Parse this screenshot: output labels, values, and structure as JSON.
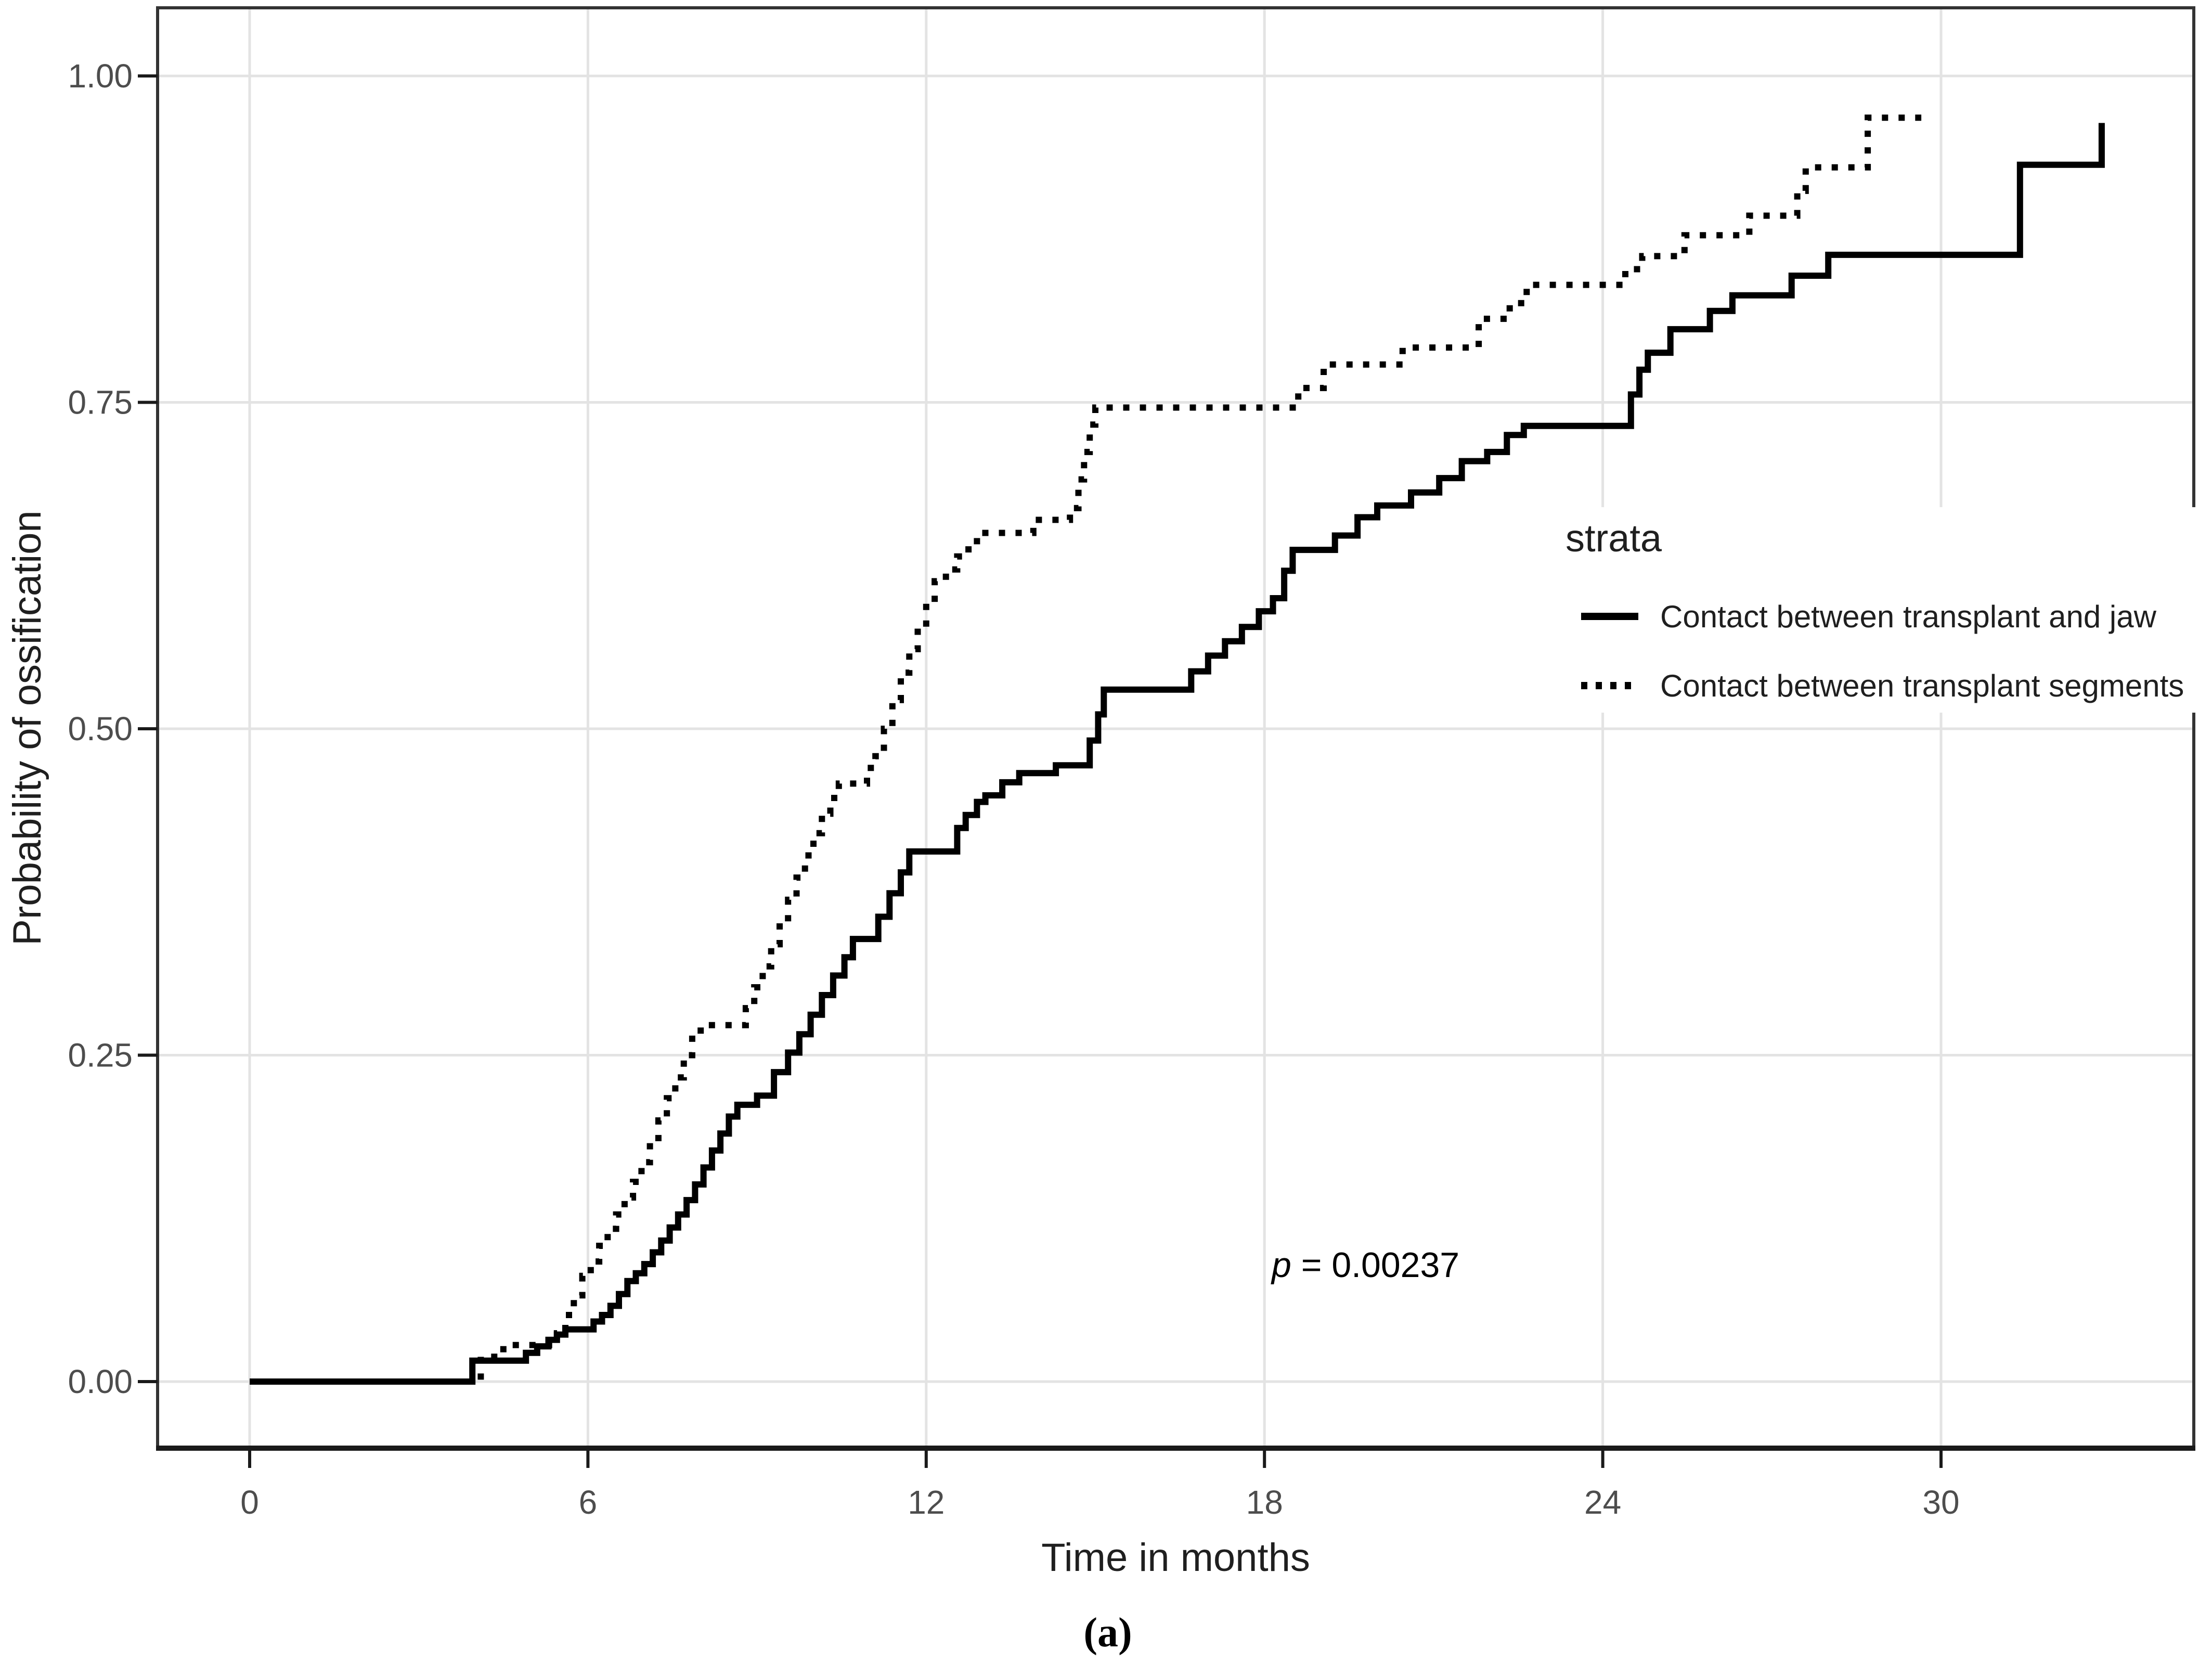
{
  "figure": {
    "background": "#ffffff",
    "caption": "(a)"
  },
  "chart_data": {
    "type": "line",
    "subtype": "kaplan-meier-cumulative-incidence-step",
    "title": "",
    "xlabel": "Time in months",
    "ylabel": "Probability of ossification",
    "xlim": [
      -1.6,
      34.5
    ],
    "ylim": [
      0,
      1.05
    ],
    "grid": "major-only",
    "x_ticks": [
      {
        "value": 0,
        "label": "0"
      },
      {
        "value": 6,
        "label": "6"
      },
      {
        "value": 12,
        "label": "12"
      },
      {
        "value": 18,
        "label": "18"
      },
      {
        "value": 24,
        "label": "24"
      },
      {
        "value": 30,
        "label": "30"
      }
    ],
    "y_ticks": [
      {
        "value": 0,
        "label": "0.00"
      },
      {
        "value": 0.25,
        "label": "0.25"
      },
      {
        "value": 0.5,
        "label": "0.50"
      },
      {
        "value": 0.75,
        "label": "0.75"
      },
      {
        "value": 1.0,
        "label": "1.00"
      }
    ],
    "annotation": {
      "italic_part": "p",
      "text_part": " = 0.00237"
    },
    "legend": {
      "title": "strata",
      "position": "inside-right"
    },
    "colors": {
      "curve": "#000000",
      "grid": "#e3e3e3",
      "panel_border": "#333333",
      "axis_line": "#1a1a1a",
      "tick_text": "#4d4d4d",
      "label_text": "#1f1f1f"
    },
    "series": [
      {
        "name": "Contact between transplant and jaw",
        "line": "solid",
        "steps": [
          [
            0,
            0
          ],
          [
            3.95,
            0.016
          ],
          [
            4.9,
            0.022
          ],
          [
            5.1,
            0.027
          ],
          [
            5.3,
            0.032
          ],
          [
            5.45,
            0.036
          ],
          [
            5.6,
            0.04
          ],
          [
            6.1,
            0.046
          ],
          [
            6.25,
            0.051
          ],
          [
            6.4,
            0.058
          ],
          [
            6.55,
            0.067
          ],
          [
            6.7,
            0.077
          ],
          [
            6.85,
            0.083
          ],
          [
            7.0,
            0.09
          ],
          [
            7.15,
            0.099
          ],
          [
            7.3,
            0.108
          ],
          [
            7.45,
            0.118
          ],
          [
            7.6,
            0.128
          ],
          [
            7.75,
            0.139
          ],
          [
            7.9,
            0.151
          ],
          [
            8.05,
            0.164
          ],
          [
            8.2,
            0.177
          ],
          [
            8.35,
            0.19
          ],
          [
            8.5,
            0.203
          ],
          [
            8.65,
            0.212
          ],
          [
            9.0,
            0.219
          ],
          [
            9.3,
            0.237
          ],
          [
            9.55,
            0.252
          ],
          [
            9.75,
            0.266
          ],
          [
            9.95,
            0.281
          ],
          [
            10.15,
            0.296
          ],
          [
            10.35,
            0.311
          ],
          [
            10.55,
            0.325
          ],
          [
            10.7,
            0.339
          ],
          [
            11.15,
            0.356
          ],
          [
            11.35,
            0.374
          ],
          [
            11.55,
            0.39
          ],
          [
            11.7,
            0.406
          ],
          [
            12.55,
            0.424
          ],
          [
            12.7,
            0.434
          ],
          [
            12.9,
            0.444
          ],
          [
            13.05,
            0.449
          ],
          [
            13.35,
            0.459
          ],
          [
            13.65,
            0.466
          ],
          [
            14.3,
            0.472
          ],
          [
            14.9,
            0.491
          ],
          [
            15.05,
            0.511
          ],
          [
            15.15,
            0.53
          ],
          [
            16.7,
            0.544
          ],
          [
            17.0,
            0.556
          ],
          [
            17.3,
            0.567
          ],
          [
            17.6,
            0.578
          ],
          [
            17.9,
            0.59
          ],
          [
            18.15,
            0.6
          ],
          [
            18.35,
            0.621
          ],
          [
            18.5,
            0.637
          ],
          [
            19.25,
            0.648
          ],
          [
            19.65,
            0.662
          ],
          [
            20.0,
            0.671
          ],
          [
            20.6,
            0.681
          ],
          [
            21.1,
            0.692
          ],
          [
            21.5,
            0.705
          ],
          [
            21.95,
            0.712
          ],
          [
            22.3,
            0.725
          ],
          [
            22.6,
            0.732
          ],
          [
            24.5,
            0.756
          ],
          [
            24.65,
            0.775
          ],
          [
            24.8,
            0.788
          ],
          [
            25.2,
            0.806
          ],
          [
            25.9,
            0.82
          ],
          [
            26.3,
            0.832
          ],
          [
            27.35,
            0.847
          ],
          [
            28.0,
            0.863
          ],
          [
            31.4,
            0.932
          ],
          [
            32.85,
            0.964
          ]
        ]
      },
      {
        "name": "Contact between transplant segments",
        "line": "dotted",
        "end_t": 29.65,
        "steps": [
          [
            0,
            0
          ],
          [
            4.1,
            0.019
          ],
          [
            4.5,
            0.028
          ],
          [
            5.45,
            0.037
          ],
          [
            5.6,
            0.051
          ],
          [
            5.75,
            0.066
          ],
          [
            5.9,
            0.081
          ],
          [
            6.05,
            0.092
          ],
          [
            6.2,
            0.104
          ],
          [
            6.35,
            0.117
          ],
          [
            6.5,
            0.128
          ],
          [
            6.65,
            0.141
          ],
          [
            6.8,
            0.153
          ],
          [
            6.95,
            0.168
          ],
          [
            7.1,
            0.183
          ],
          [
            7.25,
            0.2
          ],
          [
            7.4,
            0.217
          ],
          [
            7.55,
            0.233
          ],
          [
            7.7,
            0.25
          ],
          [
            7.85,
            0.265
          ],
          [
            8.0,
            0.273
          ],
          [
            8.8,
            0.286
          ],
          [
            8.95,
            0.302
          ],
          [
            9.1,
            0.318
          ],
          [
            9.25,
            0.335
          ],
          [
            9.4,
            0.352
          ],
          [
            9.55,
            0.369
          ],
          [
            9.7,
            0.386
          ],
          [
            9.85,
            0.403
          ],
          [
            10.0,
            0.42
          ],
          [
            10.15,
            0.435
          ],
          [
            10.3,
            0.447
          ],
          [
            10.45,
            0.458
          ],
          [
            10.95,
            0.47
          ],
          [
            11.1,
            0.479
          ],
          [
            11.25,
            0.5
          ],
          [
            11.4,
            0.522
          ],
          [
            11.55,
            0.543
          ],
          [
            11.7,
            0.561
          ],
          [
            11.85,
            0.578
          ],
          [
            12.0,
            0.596
          ],
          [
            12.15,
            0.613
          ],
          [
            12.35,
            0.622
          ],
          [
            12.55,
            0.632
          ],
          [
            12.75,
            0.641
          ],
          [
            12.9,
            0.65
          ],
          [
            13.9,
            0.66
          ],
          [
            14.55,
            0.669
          ],
          [
            14.7,
            0.691
          ],
          [
            14.8,
            0.712
          ],
          [
            14.9,
            0.733
          ],
          [
            15.0,
            0.746
          ],
          [
            18.6,
            0.761
          ],
          [
            19.05,
            0.779
          ],
          [
            20.45,
            0.792
          ],
          [
            21.8,
            0.814
          ],
          [
            22.35,
            0.826
          ],
          [
            22.65,
            0.84
          ],
          [
            24.4,
            0.852
          ],
          [
            24.7,
            0.862
          ],
          [
            25.45,
            0.878
          ],
          [
            26.6,
            0.893
          ],
          [
            27.45,
            0.912
          ],
          [
            27.6,
            0.93
          ],
          [
            28.7,
            0.968
          ]
        ]
      }
    ]
  }
}
